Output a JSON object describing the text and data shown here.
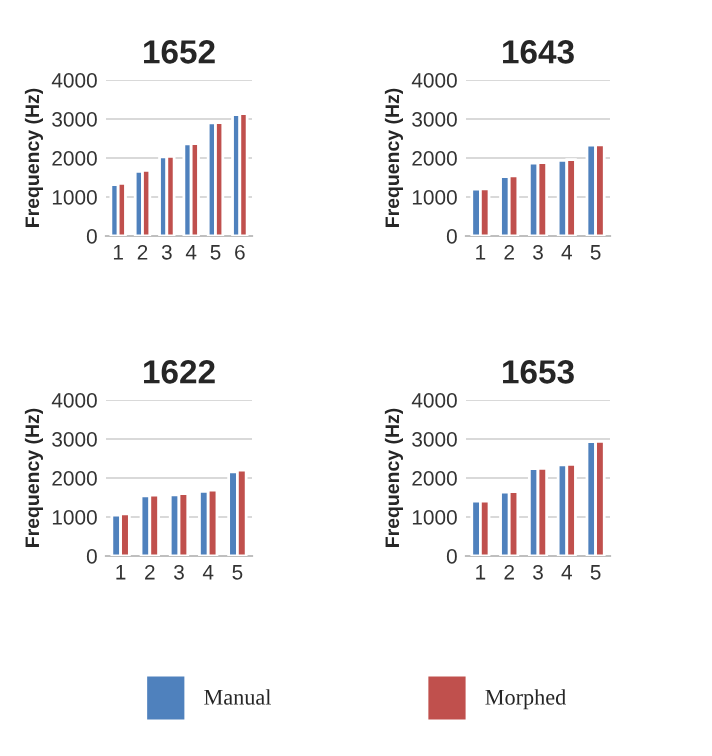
{
  "chart_data": [
    {
      "type": "bar",
      "title": "1652",
      "ylabel": "Frequency (Hz)",
      "categories": [
        "1",
        "2",
        "3",
        "4",
        "5",
        "6"
      ],
      "ylim": [
        0,
        4000
      ],
      "yticks": [
        0,
        1000,
        2000,
        3000,
        4000
      ],
      "grid": "y",
      "legend": "bottom",
      "series": [
        {
          "name": "Manual",
          "color": "#4f81bd",
          "values": [
            1320,
            1660,
            2030,
            2360,
            2900,
            3110
          ]
        },
        {
          "name": "Morphed",
          "color": "#c0504d",
          "values": [
            1350,
            1680,
            2040,
            2370,
            2910,
            3140
          ]
        }
      ]
    },
    {
      "type": "bar",
      "title": "1643",
      "ylabel": "Frequency (Hz)",
      "categories": [
        "1",
        "2",
        "3",
        "4",
        "5"
      ],
      "ylim": [
        0,
        4000
      ],
      "yticks": [
        0,
        1000,
        2000,
        3000,
        4000
      ],
      "grid": "y",
      "series": [
        {
          "color": "#4f81bd",
          "values": [
            1200,
            1520,
            1870,
            1940,
            2330
          ]
        },
        {
          "color": "#c0504d",
          "values": [
            1210,
            1540,
            1880,
            1960,
            2340
          ]
        }
      ]
    },
    {
      "type": "bar",
      "title": "1622",
      "ylabel": "Frequency (Hz)",
      "categories": [
        "1",
        "2",
        "3",
        "4",
        "5"
      ],
      "ylim": [
        0,
        4000
      ],
      "yticks": [
        0,
        1000,
        2000,
        3000,
        4000
      ],
      "grid": "y",
      "series": [
        {
          "color": "#4f81bd",
          "values": [
            1050,
            1540,
            1570,
            1660,
            2160
          ]
        },
        {
          "color": "#c0504d",
          "values": [
            1080,
            1560,
            1600,
            1690,
            2200
          ]
        }
      ]
    },
    {
      "type": "bar",
      "title": "1653",
      "ylabel": "Frequency (Hz)",
      "categories": [
        "1",
        "2",
        "3",
        "4",
        "5"
      ],
      "ylim": [
        0,
        4000
      ],
      "yticks": [
        0,
        1000,
        2000,
        3000,
        4000
      ],
      "grid": "y",
      "series": [
        {
          "color": "#4f81bd",
          "values": [
            1410,
            1640,
            2240,
            2340,
            2930
          ]
        },
        {
          "color": "#c0504d",
          "values": [
            1410,
            1650,
            2250,
            2350,
            2940
          ]
        }
      ]
    }
  ]
}
